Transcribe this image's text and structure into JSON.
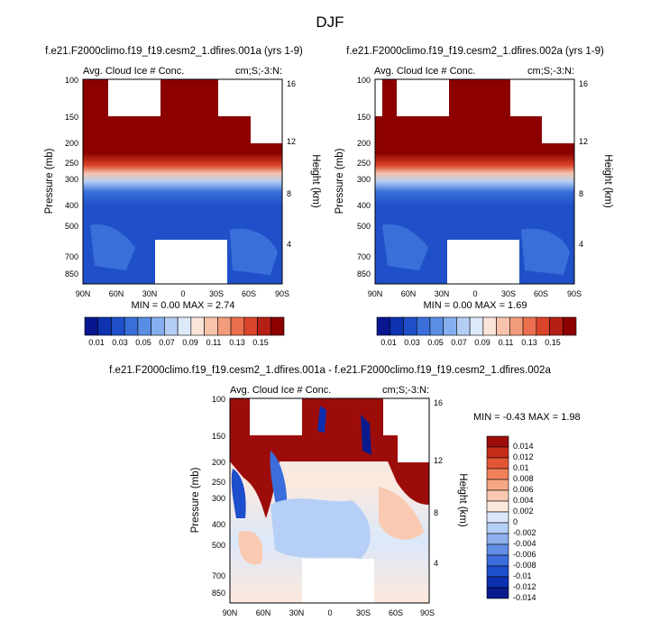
{
  "figure_title": "DJF",
  "colors": {
    "dark_red": "#8c0000",
    "seq_scale": [
      "#08178f",
      "#0d33b0",
      "#1f50c9",
      "#3a6fda",
      "#5a8ee4",
      "#84aeee",
      "#b3cdf4",
      "#dce9f9",
      "#fbe4d8",
      "#f7c3ab",
      "#f29c7c",
      "#eb6f4e",
      "#d9442a",
      "#b61f15",
      "#8c0000"
    ],
    "div_scale": [
      "#0a1a8c",
      "#0c2fb0",
      "#1d4ecb",
      "#3b6ddc",
      "#628ee6",
      "#8db0ef",
      "#b6cff6",
      "#dbe8fa",
      "#fde9dc",
      "#fac9b1",
      "#f6a785",
      "#f0805a",
      "#e45533",
      "#c62c18",
      "#9c0d0a"
    ]
  },
  "chart_data": [
    {
      "type": "heatmap",
      "title": "f.e21.F2000climo.f19_f19.cesm2_1.dfires.001a (yrs 1-9)",
      "left_label": "Avg. Cloud Ice # Conc.",
      "right_label": "cm;S;-3:N:",
      "xlabel": "",
      "ylabel": "Pressure (mb)",
      "ylabel_right": "Height (km)",
      "x_ticks": [
        "90N",
        "60N",
        "30N",
        "0",
        "30S",
        "60S",
        "90S"
      ],
      "y_ticks": [
        "100",
        "150",
        "200",
        "250",
        "300",
        "400",
        "500",
        "700",
        "850"
      ],
      "height_ticks": [
        "16",
        "12",
        "8",
        "4"
      ],
      "stats": "MIN =  0.00  MAX =  2.74",
      "min": 0.0,
      "max": 2.74,
      "colorbar_labels": [
        "0.01",
        "0.03",
        "0.05",
        "0.07",
        "0.09",
        "0.11",
        "0.13",
        "0.15"
      ]
    },
    {
      "type": "heatmap",
      "title": "f.e21.F2000climo.f19_f19.cesm2_1.dfires.002a (yrs 1-9)",
      "left_label": "Avg. Cloud Ice # Conc.",
      "right_label": "cm;S;-3:N:",
      "xlabel": "",
      "ylabel": "Pressure (mb)",
      "ylabel_right": "Height (km)",
      "x_ticks": [
        "90N",
        "60N",
        "30N",
        "0",
        "30S",
        "60S",
        "90S"
      ],
      "y_ticks": [
        "100",
        "150",
        "200",
        "250",
        "300",
        "400",
        "500",
        "700",
        "850"
      ],
      "height_ticks": [
        "16",
        "12",
        "8",
        "4"
      ],
      "stats": "MIN =  0.00  MAX =  1.69",
      "min": 0.0,
      "max": 1.69,
      "colorbar_labels": [
        "0.01",
        "0.03",
        "0.05",
        "0.07",
        "0.09",
        "0.11",
        "0.13",
        "0.15"
      ]
    },
    {
      "type": "heatmap",
      "title": "f.e21.F2000climo.f19_f19.cesm2_1.dfires.001a - f.e21.F2000climo.f19_f19.cesm2_1.dfires.002a",
      "left_label": "Avg. Cloud Ice # Conc.",
      "right_label": "cm;S;-3:N:",
      "xlabel": "",
      "ylabel": "Pressure (mb)",
      "ylabel_right": "Height (km)",
      "x_ticks": [
        "90N",
        "60N",
        "30N",
        "0",
        "30S",
        "60S",
        "90S"
      ],
      "y_ticks": [
        "100",
        "150",
        "200",
        "250",
        "300",
        "400",
        "500",
        "700",
        "850"
      ],
      "height_ticks": [
        "16",
        "12",
        "8",
        "4"
      ],
      "stats": "MIN = -0.43  MAX =  1.98",
      "min": -0.43,
      "max": 1.98,
      "colorbar_labels": [
        "0.014",
        "0.012",
        "0.01",
        "0.008",
        "0.006",
        "0.004",
        "0.002",
        "0",
        "-0.002",
        "-0.004",
        "-0.006",
        "-0.008",
        "-0.01",
        "-0.012",
        "-0.014"
      ]
    }
  ]
}
